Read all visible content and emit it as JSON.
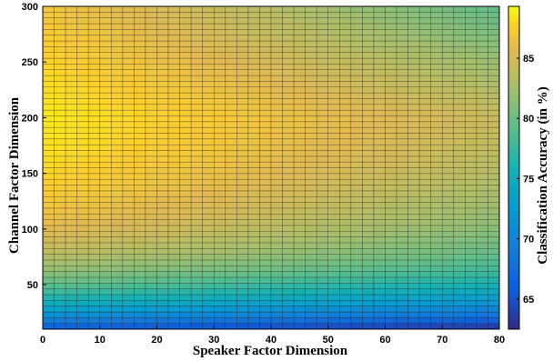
{
  "chart_data": {
    "type": "heatmap",
    "title": "",
    "xlabel": "Speaker Factor Dimension",
    "ylabel": "Channel Factor Dimension",
    "colorbar_label": "Classification Accuracy (in %)",
    "colormap": "parula",
    "xlim": [
      0,
      80
    ],
    "ylim": [
      10,
      300
    ],
    "x_ticks": [
      "0",
      "10",
      "20",
      "30",
      "40",
      "50",
      "60",
      "70",
      "80"
    ],
    "y_ticks": [
      "50",
      "100",
      "150",
      "200",
      "250",
      "300"
    ],
    "clim": [
      62.5,
      89.3
    ],
    "colorbar_ticks": [
      "65",
      "70",
      "75",
      "80",
      "85"
    ],
    "grid_columns": 40,
    "grid_rows": 56,
    "surface": {
      "description_points": [
        {
          "x": 0,
          "y": 12,
          "value": 65.5
        },
        {
          "x": 80,
          "y": 12,
          "value": 62.5
        },
        {
          "x": 0,
          "y": 50,
          "value": 73.5
        },
        {
          "x": 80,
          "y": 50,
          "value": 68.5
        },
        {
          "x": 0,
          "y": 100,
          "value": 80.5
        },
        {
          "x": 80,
          "y": 100,
          "value": 79.0
        },
        {
          "x": 10,
          "y": 180,
          "value": 89.0
        },
        {
          "x": 80,
          "y": 200,
          "value": 85.5
        },
        {
          "x": 80,
          "y": 300,
          "value": 82.5
        }
      ]
    }
  }
}
